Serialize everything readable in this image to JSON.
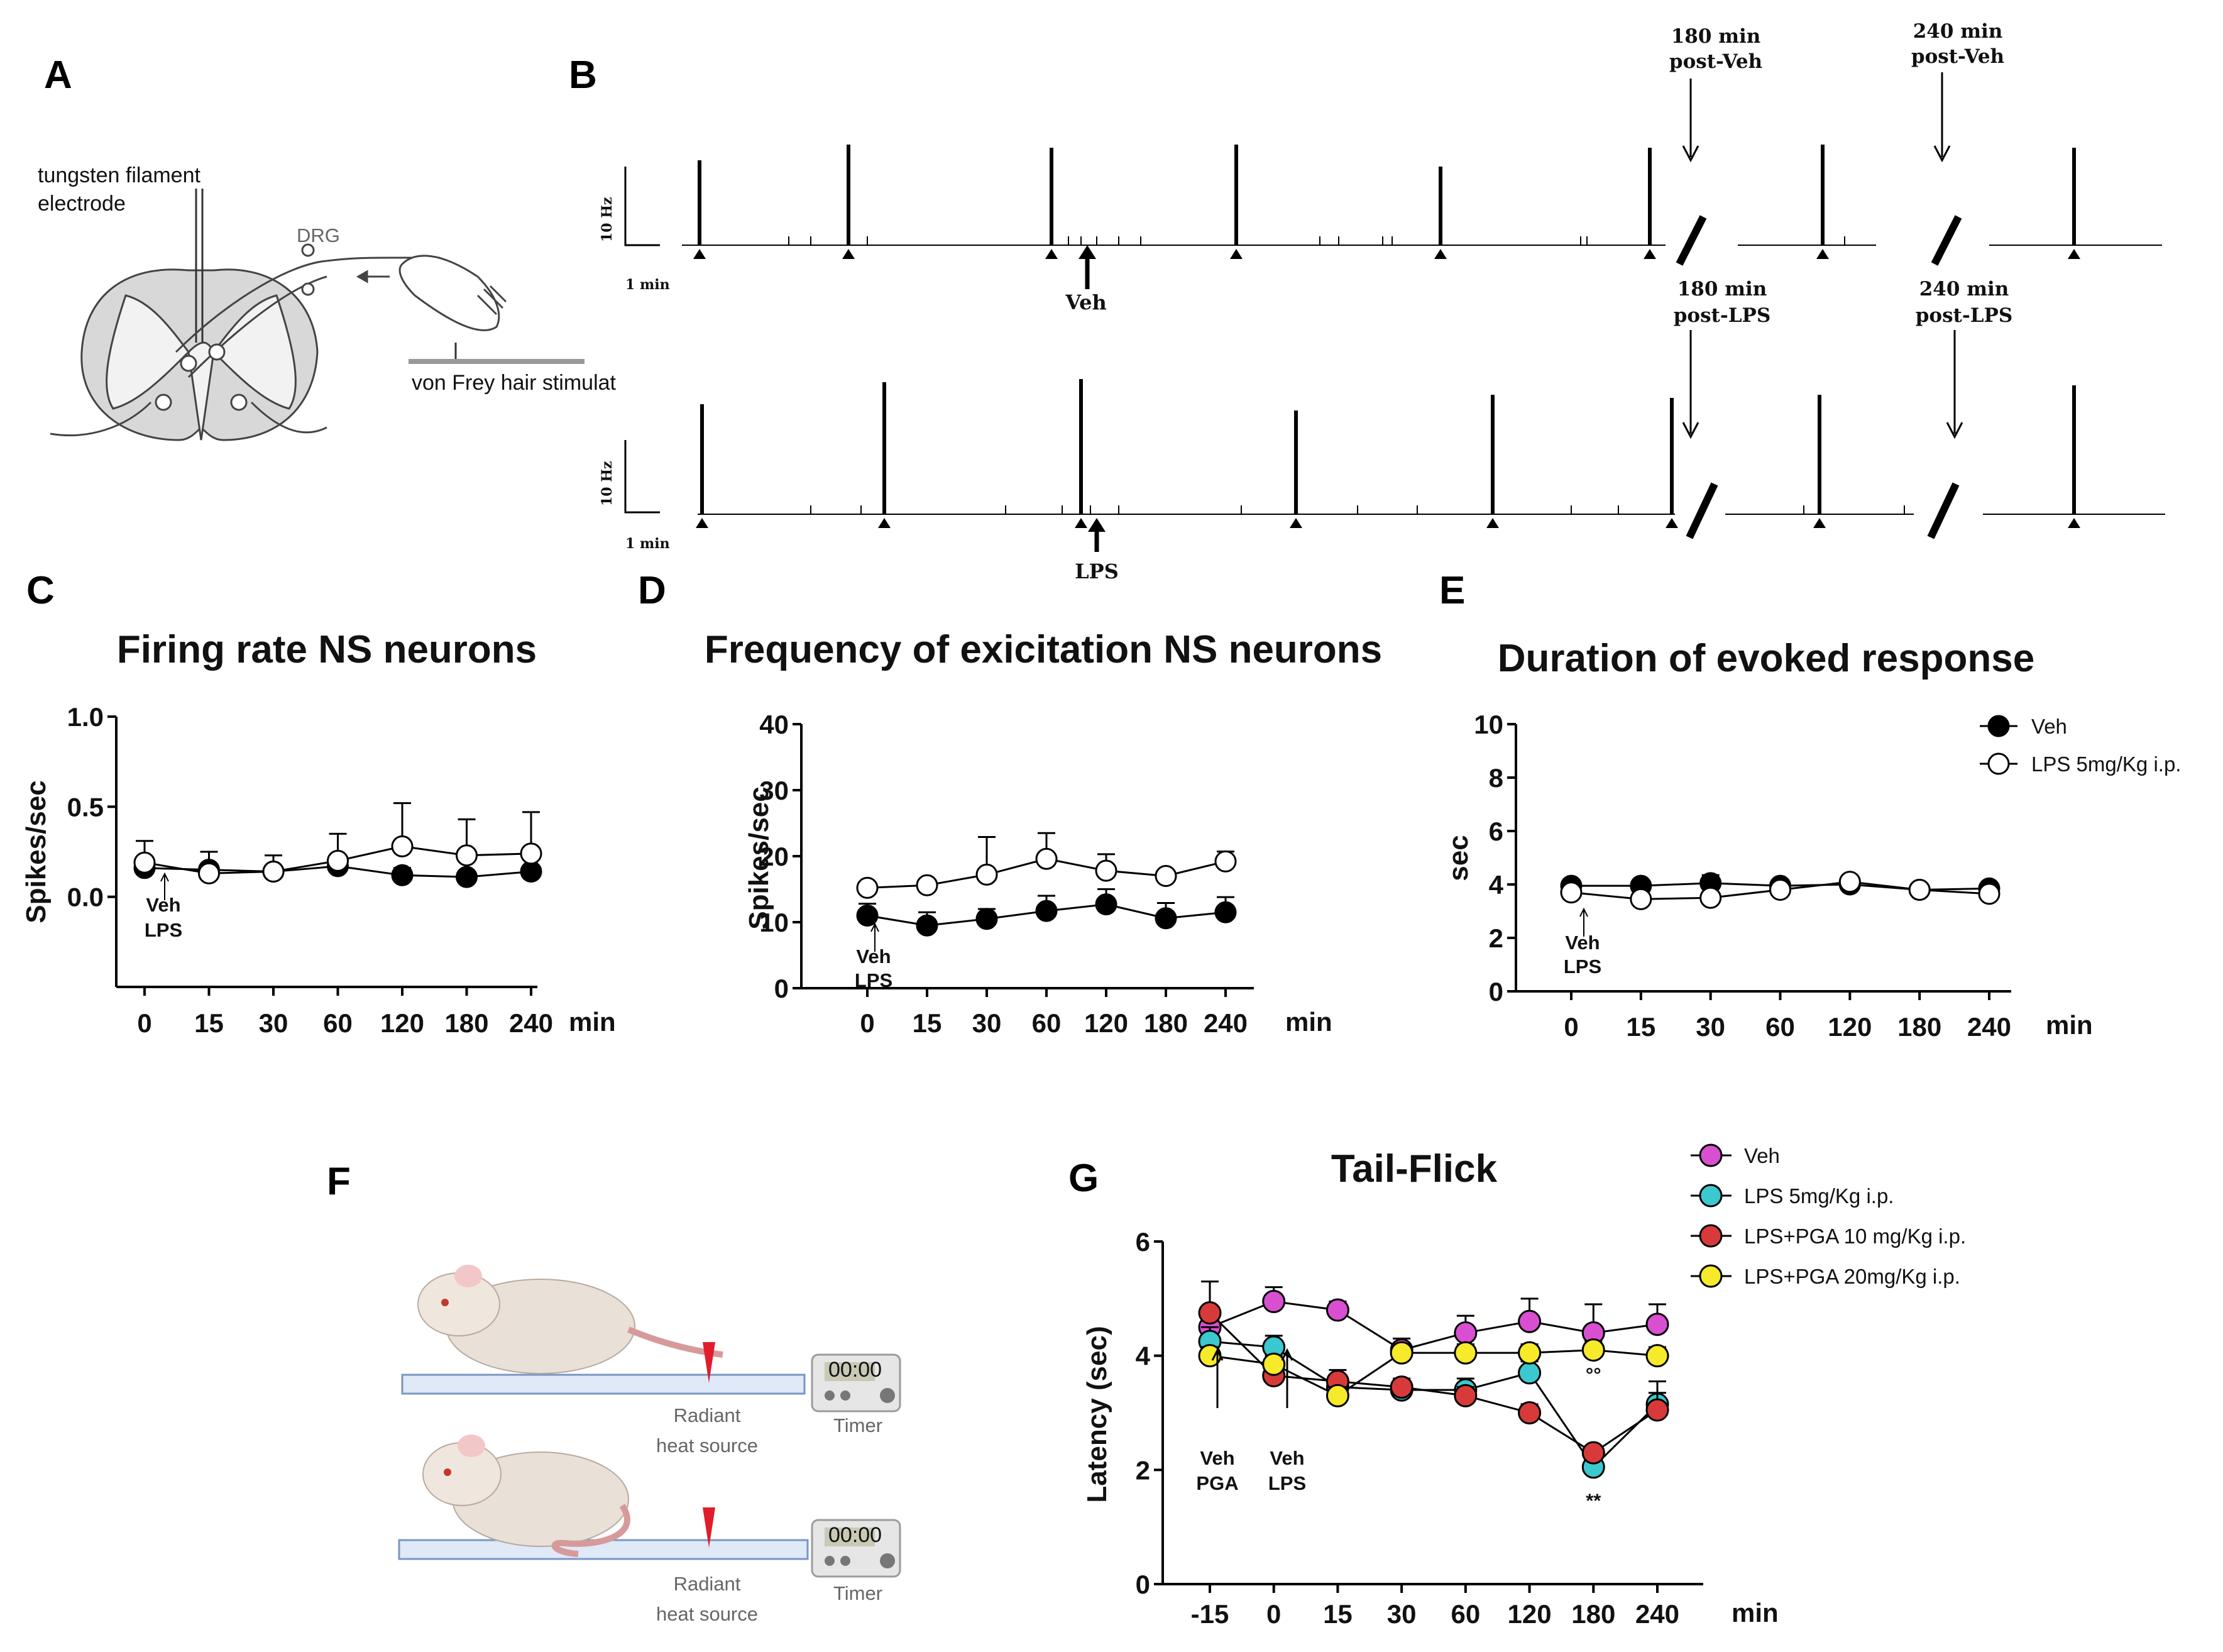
{
  "panels": {
    "A": {
      "letter": "A",
      "electrode_label": [
        "tungsten filament",
        "electrode"
      ],
      "drg_label": "DRG",
      "stim_label": "von Frey hair stimulat"
    },
    "B": {
      "letter": "B",
      "top_marks": [
        {
          "lines": [
            "180 min",
            "post-Veh"
          ]
        },
        {
          "lines": [
            "240 min",
            "post-Veh"
          ]
        }
      ],
      "bottom_marks": [
        {
          "lines": [
            "180 min",
            "post-LPS"
          ]
        },
        {
          "lines": [
            "240 min",
            "post-LPS"
          ]
        }
      ],
      "scale_hz": "10 Hz",
      "scale_time": "1 min",
      "veh_label": "Veh",
      "lps_label": "LPS"
    },
    "F": {
      "letter": "F",
      "labels": {
        "radiant_1": "Radiant",
        "heat_1": "heat source",
        "timer_1": "Timer",
        "radiant_2": "Radiant",
        "heat_2": "heat source",
        "timer_2": "Timer",
        "display": "00:00"
      }
    }
  },
  "chart_data": [
    {
      "id": "C",
      "letter": "C",
      "type": "line",
      "title": "Firing rate NS neurons",
      "ylabel": "Spikes/sec",
      "xlabel": "min",
      "categories": [
        "0",
        "15",
        "30",
        "60",
        "120",
        "180",
        "240"
      ],
      "ylim": [
        -0.5,
        1.0
      ],
      "yticks": [
        0.0,
        0.5,
        1.0
      ],
      "ytick_labels": [
        "0.0",
        "0.5",
        "1.0"
      ],
      "annotation": [
        "Veh",
        "LPS"
      ],
      "series": [
        {
          "name": "Veh",
          "fill": "#000000",
          "values": [
            0.16,
            0.15,
            0.14,
            0.17,
            0.12,
            0.11,
            0.14
          ],
          "errors": [
            0.03,
            0.03,
            0.03,
            0.03,
            0.04,
            0.03,
            0.03
          ]
        },
        {
          "name": "LPS 5mg/Kg i.p.",
          "fill": "#ffffff",
          "values": [
            0.19,
            0.13,
            0.14,
            0.2,
            0.28,
            0.23,
            0.24
          ],
          "errors": [
            0.12,
            0.12,
            0.09,
            0.15,
            0.24,
            0.2,
            0.23
          ]
        }
      ]
    },
    {
      "id": "D",
      "letter": "D",
      "type": "line",
      "title": "Frequency of exicitation NS neurons",
      "ylabel": "Spikes/sec",
      "xlabel": "min",
      "categories": [
        "0",
        "15",
        "30",
        "60",
        "120",
        "180",
        "240"
      ],
      "ylim": [
        0,
        40
      ],
      "yticks": [
        0,
        10,
        20,
        30,
        40
      ],
      "ytick_labels": [
        "0",
        "10",
        "20",
        "30",
        "40"
      ],
      "annotation": [
        "Veh",
        "LPS"
      ],
      "series": [
        {
          "name": "Veh",
          "fill": "#000000",
          "values": [
            11,
            9.5,
            10.5,
            11.7,
            12.7,
            10.6,
            11.5
          ],
          "errors": [
            1.8,
            2.0,
            1.5,
            2.3,
            2.3,
            2.3,
            2.3
          ]
        },
        {
          "name": "LPS 5mg/Kg i.p.",
          "fill": "#ffffff",
          "values": [
            15.2,
            15.6,
            17.2,
            19.6,
            17.8,
            17.0,
            19.2
          ],
          "errors": [
            0.5,
            0.5,
            5.7,
            3.9,
            2.5,
            0.5,
            1.5
          ]
        }
      ]
    },
    {
      "id": "E",
      "letter": "E",
      "type": "line",
      "title": "Duration of evoked response",
      "ylabel": "sec",
      "xlabel": "min",
      "categories": [
        "0",
        "15",
        "30",
        "60",
        "120",
        "180",
        "240"
      ],
      "ylim": [
        0,
        10
      ],
      "yticks": [
        0,
        2,
        4,
        6,
        8,
        10
      ],
      "ytick_labels": [
        "0",
        "2",
        "4",
        "6",
        "8",
        "10"
      ],
      "annotation": [
        "Veh",
        "LPS"
      ],
      "legend": {
        "position": "top-right"
      },
      "series": [
        {
          "name": "Veh",
          "fill": "#000000",
          "values": [
            3.95,
            3.95,
            4.05,
            3.95,
            4.0,
            3.8,
            3.85
          ],
          "errors": [
            0.1,
            0.1,
            0.3,
            0.1,
            0.15,
            0.1,
            0.15
          ]
        },
        {
          "name": "LPS 5mg/Kg i.p.",
          "fill": "#ffffff",
          "values": [
            3.7,
            3.45,
            3.5,
            3.8,
            4.1,
            3.8,
            3.65
          ],
          "errors": [
            0.1,
            0.1,
            0.1,
            0.1,
            0.1,
            0.1,
            0.1
          ]
        }
      ]
    },
    {
      "id": "G",
      "letter": "G",
      "type": "line",
      "title": "Tail-Flick",
      "ylabel": "Latency  (sec)",
      "xlabel": "min",
      "categories": [
        "-15",
        "0",
        "15",
        "30",
        "60",
        "120",
        "180",
        "240"
      ],
      "ylim": [
        0,
        6
      ],
      "yticks": [
        0,
        2,
        4,
        6
      ],
      "ytick_labels": [
        "0",
        "2",
        "4",
        "6"
      ],
      "annotations": [
        [
          "Veh",
          "PGA"
        ],
        [
          "Veh",
          "LPS"
        ]
      ],
      "marks": {
        "double_circle": "°°",
        "double_star": "**"
      },
      "legend": {
        "position": "top-right"
      },
      "series": [
        {
          "name": "Veh",
          "fill": "#d94fd2",
          "values": [
            4.5,
            4.95,
            4.8,
            4.1,
            4.4,
            4.6,
            4.4,
            4.55
          ],
          "errors": [
            0.25,
            0.25,
            0.15,
            0.2,
            0.3,
            0.4,
            0.5,
            0.35
          ]
        },
        {
          "name": "LPS 5mg/Kg i.p.",
          "fill": "#3bc8cf",
          "values": [
            4.25,
            4.15,
            3.45,
            3.4,
            3.4,
            3.7,
            2.05,
            3.15
          ],
          "errors": [
            0.25,
            0.2,
            0.2,
            0.15,
            0.2,
            0.2,
            0.1,
            0.2
          ]
        },
        {
          "name": "LPS+PGA 10 mg/Kg i.p.",
          "fill": "#d83a3a",
          "values": [
            4.75,
            3.65,
            3.55,
            3.45,
            3.3,
            3.0,
            2.3,
            3.05
          ],
          "errors": [
            0.55,
            0.2,
            0.2,
            0.15,
            0.15,
            0.15,
            0.1,
            0.5
          ]
        },
        {
          "name": "LPS+PGA 20mg/Kg i.p.",
          "fill": "#f6ea2a",
          "values": [
            4.0,
            3.85,
            3.3,
            4.05,
            4.05,
            4.05,
            4.1,
            4.0
          ],
          "errors": [
            0.15,
            0.15,
            0.15,
            0.15,
            0.15,
            0.15,
            0.15,
            0.15
          ]
        }
      ]
    }
  ]
}
